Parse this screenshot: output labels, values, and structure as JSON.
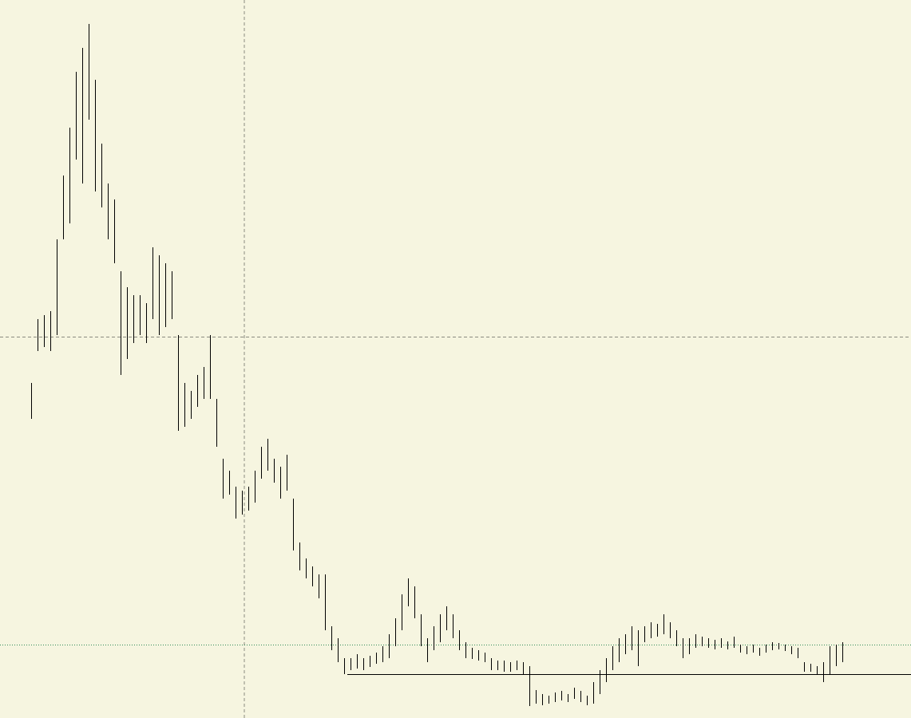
{
  "chart_data": {
    "type": "range-bar",
    "color": "#000000",
    "ylim": [
      0,
      900
    ],
    "high": [
      420,
      500,
      505,
      510,
      600,
      680,
      740,
      810,
      840,
      870,
      800,
      720,
      670,
      650,
      560,
      540,
      530,
      530,
      520,
      590,
      580,
      570,
      560,
      480,
      420,
      410,
      430,
      440,
      480,
      400,
      325,
      310,
      290,
      285,
      290,
      310,
      340,
      350,
      325,
      315,
      330,
      275,
      220,
      200,
      190,
      180,
      180,
      115,
      100,
      75,
      75,
      80,
      75,
      78,
      82,
      90,
      105,
      125,
      155,
      175,
      165,
      130,
      100,
      115,
      130,
      140,
      130,
      110,
      95,
      88,
      85,
      82,
      75,
      72,
      72,
      70,
      72,
      70,
      65,
      35,
      30,
      28,
      32,
      34,
      30,
      38,
      34,
      28,
      45,
      60,
      75,
      90,
      100,
      105,
      115,
      110,
      115,
      120,
      118,
      130,
      120,
      110,
      100,
      100,
      105,
      102,
      100,
      98,
      100,
      96,
      102,
      92,
      90,
      92,
      88,
      92,
      95,
      94,
      92,
      90,
      88,
      70,
      68,
      65,
      70,
      90,
      92,
      95
    ],
    "low": [
      375,
      460,
      465,
      460,
      480,
      600,
      620,
      700,
      670,
      750,
      660,
      640,
      600,
      570,
      430,
      450,
      470,
      480,
      470,
      500,
      480,
      490,
      500,
      360,
      365,
      375,
      390,
      400,
      400,
      340,
      275,
      280,
      250,
      255,
      260,
      270,
      300,
      310,
      295,
      275,
      285,
      210,
      185,
      175,
      165,
      150,
      110,
      85,
      70,
      55,
      60,
      62,
      60,
      64,
      68,
      70,
      75,
      90,
      110,
      140,
      125,
      90,
      70,
      85,
      95,
      110,
      100,
      85,
      75,
      74,
      72,
      70,
      60,
      60,
      58,
      58,
      60,
      55,
      15,
      18,
      16,
      18,
      20,
      22,
      20,
      24,
      20,
      16,
      18,
      30,
      45,
      60,
      70,
      80,
      85,
      65,
      95,
      100,
      102,
      105,
      100,
      90,
      75,
      80,
      88,
      90,
      88,
      86,
      88,
      86,
      88,
      82,
      80,
      82,
      78,
      82,
      85,
      86,
      84,
      80,
      75,
      58,
      58,
      55,
      45,
      55,
      65,
      70
    ],
    "levels": [
      {
        "value": 92,
        "color": "#2e8b57",
        "style": "dotted"
      },
      {
        "value": 55,
        "color": "#000000",
        "style": "solid"
      }
    ]
  }
}
